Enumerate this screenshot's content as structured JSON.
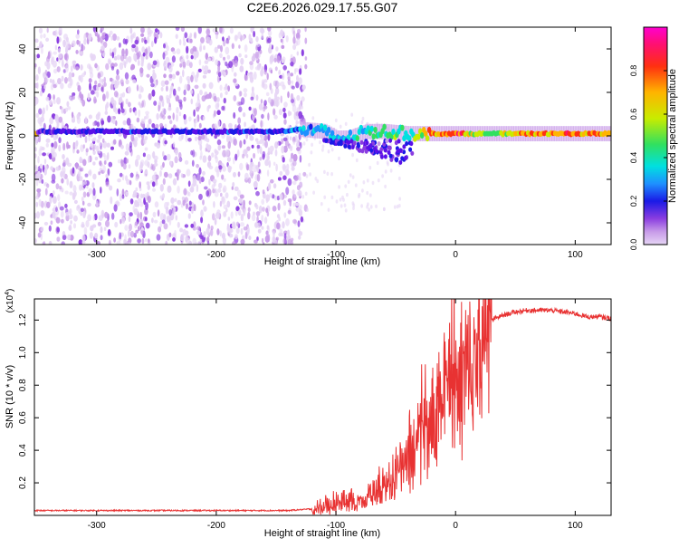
{
  "title": "C2E6.2026.029.17.55.G07",
  "colors": {
    "snr_line": "#e83232",
    "frame": "#000000",
    "colormap": [
      "#e6d5f5",
      "#c79ae8",
      "#8a3de0",
      "#5a10e8",
      "#1a1ae6",
      "#1e90ff",
      "#00e0e0",
      "#30e060",
      "#c8ec00",
      "#ffb400",
      "#ff3010",
      "#ff1070",
      "#ff00d0"
    ]
  },
  "chart_data": [
    {
      "type": "heatmap",
      "name": "spectrogram",
      "xlabel": "Height of straight line (km)",
      "ylabel": "Frequency (Hz)",
      "xlim": [
        -352,
        130
      ],
      "ylim": [
        -50,
        50
      ],
      "x_ticks": [
        -300,
        -200,
        -100,
        0,
        100
      ],
      "x_tick_labels": [
        "-300",
        "-200",
        "-100",
        "0",
        "100"
      ],
      "y_ticks": [
        -40,
        -20,
        0,
        20,
        40
      ],
      "y_tick_labels": [
        "-40",
        "-20",
        "0",
        "20",
        "40"
      ],
      "noise_region_x": [
        -352,
        -135
      ],
      "signal_band": [
        {
          "x": -350,
          "f": 2,
          "amp": 0.25
        },
        {
          "x": -300,
          "f": 2,
          "amp": 0.28
        },
        {
          "x": -250,
          "f": 2,
          "amp": 0.3
        },
        {
          "x": -200,
          "f": 2,
          "amp": 0.3
        },
        {
          "x": -150,
          "f": 2,
          "amp": 0.32
        },
        {
          "x": -130,
          "f": 3,
          "amp": 0.4
        },
        {
          "x": -110,
          "f": 2,
          "amp": 0.45
        },
        {
          "x": -100,
          "f": -1,
          "amp": 0.45
        },
        {
          "x": -90,
          "f": -1,
          "amp": 0.45
        },
        {
          "x": -75,
          "f": 2,
          "amp": 0.5
        },
        {
          "x": -60,
          "f": 2,
          "amp": 0.55
        },
        {
          "x": -40,
          "f": 1,
          "amp": 0.55
        },
        {
          "x": -20,
          "f": 1,
          "amp": 0.75
        },
        {
          "x": 0,
          "f": 1,
          "amp": 0.85
        },
        {
          "x": 20,
          "f": 1,
          "amp": 0.6
        },
        {
          "x": 50,
          "f": 1,
          "amp": 0.72
        },
        {
          "x": 90,
          "f": 1,
          "amp": 0.8
        },
        {
          "x": 130,
          "f": 1,
          "amp": 0.78
        }
      ],
      "colorbar": {
        "label": "Normalized spectral amplitude",
        "range": [
          0,
          1
        ],
        "ticks": [
          0.0,
          0.2,
          0.4,
          0.6,
          0.8
        ],
        "tick_labels": [
          "0.0",
          "0.2",
          "0.4",
          "0.6",
          "0.8"
        ]
      }
    },
    {
      "type": "line",
      "name": "snr",
      "xlabel": "Height of straight line (km)",
      "ylabel": "SNR (10 * v/v)",
      "y_scale_label": "(x10",
      "y_scale_exponent": "4",
      "y_scale_suffix": ")",
      "xlim": [
        -352,
        130
      ],
      "ylim": [
        0,
        1.33
      ],
      "x_ticks": [
        -300,
        -200,
        -100,
        0,
        100
      ],
      "x_tick_labels": [
        "-300",
        "-200",
        "-100",
        "0",
        "100"
      ],
      "y_ticks": [
        0.2,
        0.4,
        0.6,
        0.8,
        1.0,
        1.2
      ],
      "y_tick_labels": [
        "0.2",
        "0.4",
        "0.6",
        "0.8",
        "1.0",
        "1.2"
      ],
      "series": [
        {
          "name": "SNR",
          "x": [
            -352,
            -300,
            -250,
            -200,
            -160,
            -140,
            -120,
            -105,
            -95,
            -80,
            -70,
            -60,
            -50,
            -40,
            -30,
            -20,
            -15,
            -10,
            -5,
            0,
            10,
            20,
            30,
            40,
            50,
            60,
            70,
            80,
            90,
            100,
            110,
            120,
            130
          ],
          "y": [
            0.03,
            0.03,
            0.03,
            0.03,
            0.03,
            0.03,
            0.04,
            0.07,
            0.1,
            0.12,
            0.15,
            0.2,
            0.3,
            0.42,
            0.58,
            0.75,
            0.82,
            0.88,
            0.95,
            1.02,
            1.08,
            1.15,
            1.2,
            1.23,
            1.25,
            1.26,
            1.26,
            1.26,
            1.25,
            1.24,
            1.22,
            1.22,
            1.21
          ]
        }
      ]
    }
  ]
}
